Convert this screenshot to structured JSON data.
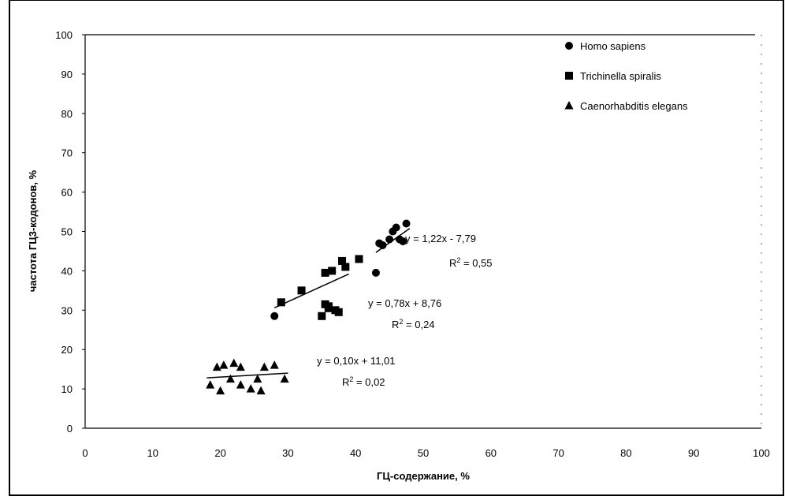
{
  "chart_data": {
    "type": "scatter",
    "title": "",
    "xlabel": "ГЦ-содержание, %",
    "ylabel": "частота ГЦ3-кодонов, %",
    "xlim": [
      0,
      100
    ],
    "ylim": [
      0,
      100
    ],
    "xticks": [
      "0",
      "10",
      "20",
      "30",
      "40",
      "50",
      "60",
      "70",
      "80",
      "90",
      "100"
    ],
    "yticks": [
      "0",
      "10",
      "20",
      "30",
      "40",
      "50",
      "60",
      "70",
      "80",
      "90",
      "100"
    ],
    "grid": false,
    "legend_position": "top-right",
    "series": [
      {
        "name": "Homo sapiens",
        "marker": "circle",
        "color": "#000000",
        "x": [
          28,
          43,
          43.5,
          44,
          45,
          45.5,
          46,
          46.5,
          47,
          47.5
        ],
        "y": [
          28.5,
          39.5,
          47,
          46.5,
          48,
          50,
          51,
          48,
          47.5,
          52
        ],
        "trend": {
          "slope": 1.22,
          "intercept": -7.79,
          "x_range": [
            43,
            48
          ],
          "equation": "y = 1,22x - 7,79",
          "r2_label": "R",
          "r2_value": " = 0,55"
        }
      },
      {
        "name": "Trichinella spiralis",
        "marker": "square",
        "color": "#000000",
        "x": [
          29,
          32,
          35,
          35.5,
          35.5,
          36,
          36,
          36.5,
          37,
          37.5,
          38,
          38.5,
          40.5
        ],
        "y": [
          32,
          35,
          28.5,
          31.5,
          39.5,
          30.5,
          31,
          40,
          30,
          29.5,
          42.5,
          41,
          43
        ],
        "trend": {
          "slope": 0.78,
          "intercept": 8.76,
          "x_range": [
            28,
            39
          ],
          "equation": "y = 0,78x + 8,76",
          "r2_label": "R",
          "r2_value": " = 0,24"
        }
      },
      {
        "name": "Caenorhabditis elegans",
        "marker": "triangle",
        "color": "#000000",
        "x": [
          18.5,
          19.5,
          20,
          20.5,
          21.5,
          22,
          23,
          23,
          24.5,
          25.5,
          26,
          26.5,
          28,
          29.5
        ],
        "y": [
          11,
          15.5,
          9.5,
          16,
          12.5,
          16.5,
          11,
          15.5,
          10,
          12.5,
          9.5,
          15.5,
          16,
          12.5
        ],
        "trend": {
          "slope": 0.1,
          "intercept": 11.01,
          "x_range": [
            18,
            30
          ],
          "equation": "y = 0,10x + 11,01",
          "r2_label": "R",
          "r2_value": " = 0,02"
        }
      }
    ],
    "r2_superscript": "2",
    "r2_superscript_homo": "2"
  }
}
